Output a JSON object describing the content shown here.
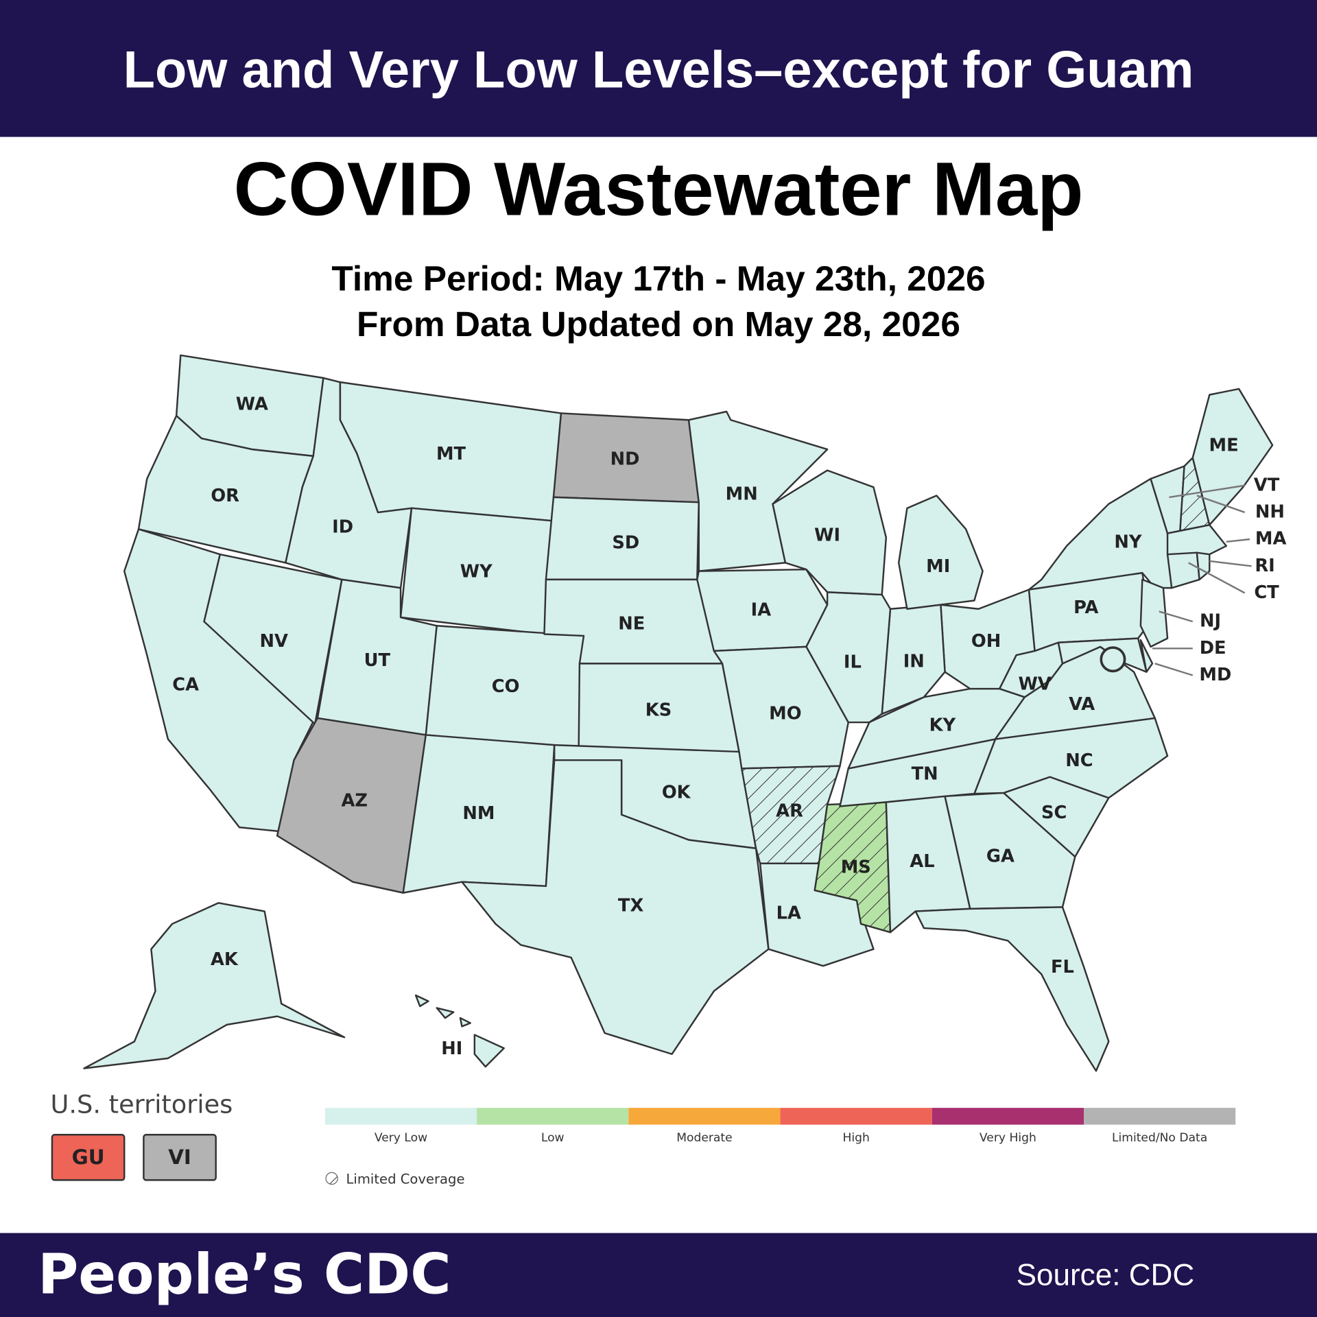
{
  "header": {
    "title": "Low and Very Low Levels–except for Guam"
  },
  "title": "COVID Wastewater Map",
  "time_period": "Time Period: May 17th - May 23th, 2026",
  "updated": "From Data Updated on May 28, 2026",
  "map": {
    "states": [
      {
        "label": "WA",
        "level": "Very Low"
      },
      {
        "label": "OR",
        "level": "Very Low"
      },
      {
        "label": "CA",
        "level": "Very Low"
      },
      {
        "label": "NV",
        "level": "Very Low"
      },
      {
        "label": "ID",
        "level": "Very Low"
      },
      {
        "label": "MT",
        "level": "Very Low"
      },
      {
        "label": "WY",
        "level": "Very Low"
      },
      {
        "label": "UT",
        "level": "Very Low"
      },
      {
        "label": "AZ",
        "level": "Limited/No Data"
      },
      {
        "label": "CO",
        "level": "Very Low"
      },
      {
        "label": "NM",
        "level": "Very Low"
      },
      {
        "label": "ND",
        "level": "Limited/No Data"
      },
      {
        "label": "SD",
        "level": "Very Low"
      },
      {
        "label": "NE",
        "level": "Very Low"
      },
      {
        "label": "KS",
        "level": "Very Low"
      },
      {
        "label": "OK",
        "level": "Very Low"
      },
      {
        "label": "TX",
        "level": "Very Low"
      },
      {
        "label": "MN",
        "level": "Very Low"
      },
      {
        "label": "IA",
        "level": "Very Low"
      },
      {
        "label": "MO",
        "level": "Very Low"
      },
      {
        "label": "AR",
        "level": "Very Low",
        "limited_coverage": true
      },
      {
        "label": "LA",
        "level": "Very Low"
      },
      {
        "label": "MS",
        "level": "Low",
        "limited_coverage": true
      },
      {
        "label": "AL",
        "level": "Very Low"
      },
      {
        "label": "GA",
        "level": "Very Low"
      },
      {
        "label": "FL",
        "level": "Very Low"
      },
      {
        "label": "SC",
        "level": "Very Low"
      },
      {
        "label": "NC",
        "level": "Very Low"
      },
      {
        "label": "TN",
        "level": "Very Low"
      },
      {
        "label": "KY",
        "level": "Very Low"
      },
      {
        "label": "VA",
        "level": "Very Low"
      },
      {
        "label": "WV",
        "level": "Very Low"
      },
      {
        "label": "OH",
        "level": "Very Low"
      },
      {
        "label": "IN",
        "level": "Very Low"
      },
      {
        "label": "IL",
        "level": "Very Low"
      },
      {
        "label": "WI",
        "level": "Very Low"
      },
      {
        "label": "MI",
        "level": "Very Low"
      },
      {
        "label": "PA",
        "level": "Very Low"
      },
      {
        "label": "NY",
        "level": "Very Low"
      },
      {
        "label": "NJ",
        "level": "Very Low"
      },
      {
        "label": "DE",
        "level": "Very Low"
      },
      {
        "label": "MD",
        "level": "Very Low"
      },
      {
        "label": "VT",
        "level": "Very Low"
      },
      {
        "label": "NH",
        "level": "Very Low",
        "limited_coverage": true
      },
      {
        "label": "ME",
        "level": "Very Low"
      },
      {
        "label": "MA",
        "level": "Very Low"
      },
      {
        "label": "CT",
        "level": "Very Low"
      },
      {
        "label": "RI",
        "level": "Very Low"
      },
      {
        "label": "AK",
        "level": "Very Low"
      },
      {
        "label": "HI",
        "level": "Very Low"
      }
    ]
  },
  "territories": {
    "title": "U.S. territories",
    "items": [
      {
        "label": "GU",
        "level": "High"
      },
      {
        "label": "VI",
        "level": "Limited/No Data"
      }
    ]
  },
  "legend": {
    "categories": [
      {
        "label": "Very Low",
        "color": "#d6f0ec"
      },
      {
        "label": "Low",
        "color": "#b5e3a5"
      },
      {
        "label": "Moderate",
        "color": "#f7a83b"
      },
      {
        "label": "High",
        "color": "#ee6457"
      },
      {
        "label": "Very High",
        "color": "#a8306f"
      },
      {
        "label": "Limited/No Data",
        "color": "#b3b3b3"
      }
    ],
    "limited_coverage_label": "Limited Coverage"
  },
  "footer": {
    "brand": "People’s CDC",
    "source": "Source: CDC"
  }
}
